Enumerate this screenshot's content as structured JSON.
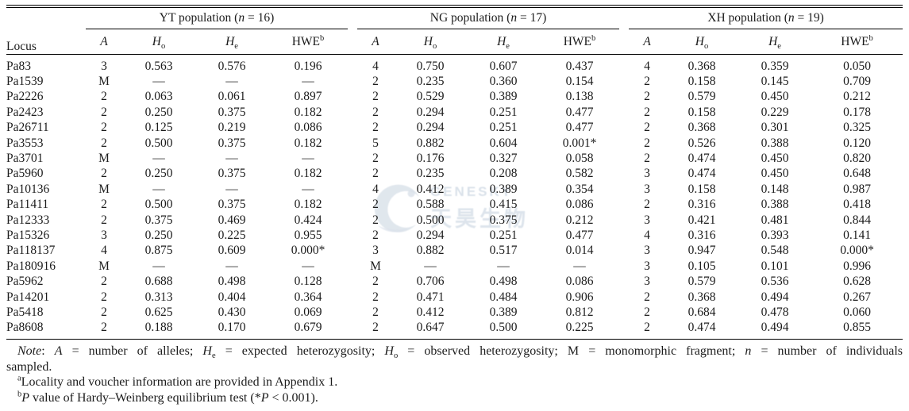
{
  "colors": {
    "text": "#1c1c1c",
    "rule": "#000000",
    "watermark": "#d8e0e9",
    "background": "#ffffff"
  },
  "table": {
    "locus_header": "Locus",
    "groups": [
      {
        "id": "yt",
        "header": [
          {
            "t": "YT population ("
          },
          {
            "t": "n",
            "i": true
          },
          {
            "t": " = 16)"
          }
        ]
      },
      {
        "id": "ng",
        "header": [
          {
            "t": "NG population ("
          },
          {
            "t": "n",
            "i": true
          },
          {
            "t": " = 17)"
          }
        ]
      },
      {
        "id": "xh",
        "header": [
          {
            "t": "XH population ("
          },
          {
            "t": "n",
            "i": true
          },
          {
            "t": " = 19)"
          }
        ]
      }
    ],
    "col_headers": [
      [
        {
          "t": "A",
          "i": true
        }
      ],
      [
        {
          "t": "H",
          "i": true
        },
        {
          "t": "o",
          "sub": true
        }
      ],
      [
        {
          "t": "H",
          "i": true
        },
        {
          "t": "e",
          "sub": true
        }
      ],
      [
        {
          "t": "HWE"
        },
        {
          "t": "b",
          "sup": true
        }
      ]
    ],
    "rows": [
      {
        "locus": "Pa83",
        "yt": [
          "3",
          "0.563",
          "0.576",
          "0.196"
        ],
        "ng": [
          "4",
          "0.750",
          "0.607",
          "0.437"
        ],
        "xh": [
          "4",
          "0.368",
          "0.359",
          "0.050"
        ]
      },
      {
        "locus": "Pa1539",
        "yt": [
          "M",
          "—",
          "—",
          "—"
        ],
        "ng": [
          "2",
          "0.235",
          "0.360",
          "0.154"
        ],
        "xh": [
          "2",
          "0.158",
          "0.145",
          "0.709"
        ]
      },
      {
        "locus": "Pa2226",
        "yt": [
          "2",
          "0.063",
          "0.061",
          "0.897"
        ],
        "ng": [
          "2",
          "0.529",
          "0.389",
          "0.138"
        ],
        "xh": [
          "2",
          "0.579",
          "0.450",
          "0.212"
        ]
      },
      {
        "locus": "Pa2423",
        "yt": [
          "2",
          "0.250",
          "0.375",
          "0.182"
        ],
        "ng": [
          "2",
          "0.294",
          "0.251",
          "0.477"
        ],
        "xh": [
          "2",
          "0.158",
          "0.229",
          "0.178"
        ]
      },
      {
        "locus": "Pa26711",
        "yt": [
          "2",
          "0.125",
          "0.219",
          "0.086"
        ],
        "ng": [
          "2",
          "0.294",
          "0.251",
          "0.477"
        ],
        "xh": [
          "2",
          "0.368",
          "0.301",
          "0.325"
        ]
      },
      {
        "locus": "Pa3553",
        "yt": [
          "2",
          "0.500",
          "0.375",
          "0.182"
        ],
        "ng": [
          "5",
          "0.882",
          "0.604",
          "0.001*"
        ],
        "xh": [
          "2",
          "0.526",
          "0.388",
          "0.120"
        ]
      },
      {
        "locus": "Pa3701",
        "yt": [
          "M",
          "—",
          "—",
          "—"
        ],
        "ng": [
          "2",
          "0.176",
          "0.327",
          "0.058"
        ],
        "xh": [
          "2",
          "0.474",
          "0.450",
          "0.820"
        ]
      },
      {
        "locus": "Pa5960",
        "yt": [
          "2",
          "0.250",
          "0.375",
          "0.182"
        ],
        "ng": [
          "2",
          "0.235",
          "0.208",
          "0.582"
        ],
        "xh": [
          "3",
          "0.474",
          "0.450",
          "0.648"
        ]
      },
      {
        "locus": "Pa10136",
        "yt": [
          "M",
          "—",
          "—",
          "—"
        ],
        "ng": [
          "4",
          "0.412",
          "0.389",
          "0.354"
        ],
        "xh": [
          "3",
          "0.158",
          "0.148",
          "0.987"
        ]
      },
      {
        "locus": "Pa11411",
        "yt": [
          "2",
          "0.500",
          "0.375",
          "0.182"
        ],
        "ng": [
          "2",
          "0.588",
          "0.415",
          "0.086"
        ],
        "xh": [
          "2",
          "0.316",
          "0.388",
          "0.418"
        ]
      },
      {
        "locus": "Pa12333",
        "yt": [
          "2",
          "0.375",
          "0.469",
          "0.424"
        ],
        "ng": [
          "2",
          "0.500",
          "0.375",
          "0.212"
        ],
        "xh": [
          "3",
          "0.421",
          "0.481",
          "0.844"
        ]
      },
      {
        "locus": "Pa15326",
        "yt": [
          "3",
          "0.250",
          "0.225",
          "0.955"
        ],
        "ng": [
          "2",
          "0.294",
          "0.251",
          "0.477"
        ],
        "xh": [
          "4",
          "0.316",
          "0.393",
          "0.141"
        ]
      },
      {
        "locus": "Pa118137",
        "yt": [
          "4",
          "0.875",
          "0.609",
          "0.000*"
        ],
        "ng": [
          "3",
          "0.882",
          "0.517",
          "0.014"
        ],
        "xh": [
          "3",
          "0.947",
          "0.548",
          "0.000*"
        ]
      },
      {
        "locus": "Pa180916",
        "yt": [
          "M",
          "—",
          "—",
          "—"
        ],
        "ng": [
          "M",
          "—",
          "—",
          "—"
        ],
        "xh": [
          "3",
          "0.105",
          "0.101",
          "0.996"
        ]
      },
      {
        "locus": "Pa5962",
        "yt": [
          "2",
          "0.688",
          "0.498",
          "0.128"
        ],
        "ng": [
          "2",
          "0.706",
          "0.498",
          "0.086"
        ],
        "xh": [
          "3",
          "0.579",
          "0.536",
          "0.628"
        ]
      },
      {
        "locus": "Pa14201",
        "yt": [
          "2",
          "0.313",
          "0.404",
          "0.364"
        ],
        "ng": [
          "2",
          "0.471",
          "0.484",
          "0.906"
        ],
        "xh": [
          "2",
          "0.368",
          "0.494",
          "0.267"
        ]
      },
      {
        "locus": "Pa5418",
        "yt": [
          "2",
          "0.625",
          "0.430",
          "0.069"
        ],
        "ng": [
          "2",
          "0.412",
          "0.389",
          "0.812"
        ],
        "xh": [
          "2",
          "0.684",
          "0.478",
          "0.060"
        ]
      },
      {
        "locus": "Pa8608",
        "yt": [
          "2",
          "0.188",
          "0.170",
          "0.679"
        ],
        "ng": [
          "2",
          "0.647",
          "0.500",
          "0.225"
        ],
        "xh": [
          "2",
          "0.474",
          "0.494",
          "0.855"
        ]
      }
    ]
  },
  "notes": {
    "note_line1": [
      {
        "t": "Note",
        "i": true
      },
      {
        "t": ": "
      },
      {
        "t": "A",
        "i": true
      },
      {
        "t": " = number of alleles; "
      },
      {
        "t": "H",
        "i": true
      },
      {
        "t": "e",
        "sub": true
      },
      {
        "t": " = expected heterozygosity; "
      },
      {
        "t": "H",
        "i": true
      },
      {
        "t": "o",
        "sub": true
      },
      {
        "t": " = observed heterozygosity; M = monomorphic fragment; "
      },
      {
        "t": "n",
        "i": true
      },
      {
        "t": " = number of individuals"
      }
    ],
    "note_line2": "sampled.",
    "footnote_a": [
      {
        "t": "a",
        "sup": true
      },
      {
        "t": "Locality and voucher information are provided in Appendix 1."
      }
    ],
    "footnote_b": [
      {
        "t": "b",
        "sup": true
      },
      {
        "t": "P",
        "i": true
      },
      {
        "t": " value of Hardy–Weinberg equilibrium test (*"
      },
      {
        "t": "P",
        "i": true
      },
      {
        "t": " < 0.001)."
      }
    ]
  },
  "watermark": {
    "brand": "GENESKY",
    "cjk": "天昊生物"
  }
}
